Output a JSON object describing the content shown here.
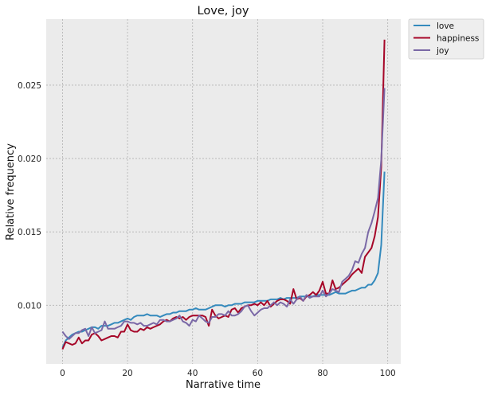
{
  "chart_data": {
    "type": "line",
    "title": "Love, joy",
    "xlabel": "Narrative time",
    "ylabel": "Relative frequency",
    "xlim": [
      -5,
      104
    ],
    "ylim": [
      0.006,
      0.0295
    ],
    "xticks": [
      0,
      20,
      40,
      60,
      80,
      100
    ],
    "yticks": [
      0.01,
      0.015,
      0.02,
      0.025
    ],
    "xtick_labels": [
      "0",
      "20",
      "40",
      "60",
      "80",
      "100"
    ],
    "ytick_labels": [
      "0.010",
      "0.015",
      "0.020",
      "0.025"
    ],
    "grid": true,
    "legend_position": "outside-top-right",
    "background": "#ebebeb",
    "x": [
      0,
      1,
      2,
      3,
      4,
      5,
      6,
      7,
      8,
      9,
      10,
      11,
      12,
      13,
      14,
      15,
      16,
      17,
      18,
      19,
      20,
      21,
      22,
      23,
      24,
      25,
      26,
      27,
      28,
      29,
      30,
      31,
      32,
      33,
      34,
      35,
      36,
      37,
      38,
      39,
      40,
      41,
      42,
      43,
      44,
      45,
      46,
      47,
      48,
      49,
      50,
      51,
      52,
      53,
      54,
      55,
      56,
      57,
      58,
      59,
      60,
      61,
      62,
      63,
      64,
      65,
      66,
      67,
      68,
      69,
      70,
      71,
      72,
      73,
      74,
      75,
      76,
      77,
      78,
      79,
      80,
      81,
      82,
      83,
      84,
      85,
      86,
      87,
      88,
      89,
      90,
      91,
      92,
      93,
      94,
      95,
      96,
      97,
      98,
      99
    ],
    "series": [
      {
        "name": "love",
        "color": "#348abd",
        "values": [
          0.0071,
          0.0076,
          0.0078,
          0.008,
          0.0081,
          0.0082,
          0.0082,
          0.0083,
          0.0084,
          0.0085,
          0.0085,
          0.0084,
          0.0086,
          0.0086,
          0.0086,
          0.0087,
          0.0088,
          0.0088,
          0.0089,
          0.009,
          0.0091,
          0.009,
          0.0092,
          0.0093,
          0.0093,
          0.0093,
          0.0094,
          0.0093,
          0.0093,
          0.0093,
          0.0092,
          0.0093,
          0.0094,
          0.0094,
          0.0095,
          0.0095,
          0.0096,
          0.0096,
          0.0096,
          0.0097,
          0.0097,
          0.0098,
          0.0097,
          0.0097,
          0.0097,
          0.0098,
          0.0099,
          0.01,
          0.01,
          0.01,
          0.0099,
          0.01,
          0.01,
          0.0101,
          0.0101,
          0.0101,
          0.0102,
          0.0102,
          0.0102,
          0.0102,
          0.0103,
          0.0103,
          0.0103,
          0.0103,
          0.0104,
          0.0104,
          0.0104,
          0.0105,
          0.0104,
          0.0105,
          0.0105,
          0.0105,
          0.0105,
          0.0106,
          0.0106,
          0.0106,
          0.0106,
          0.0106,
          0.0107,
          0.0107,
          0.0107,
          0.0107,
          0.0107,
          0.0108,
          0.0109,
          0.0108,
          0.0108,
          0.0108,
          0.0109,
          0.011,
          0.011,
          0.0111,
          0.0112,
          0.0112,
          0.0114,
          0.0114,
          0.0117,
          0.0122,
          0.0141,
          0.0191
        ]
      },
      {
        "name": "happiness",
        "color": "#a60628",
        "values": [
          0.007,
          0.0075,
          0.0074,
          0.0073,
          0.0074,
          0.0078,
          0.0074,
          0.0076,
          0.0076,
          0.008,
          0.0081,
          0.0079,
          0.0076,
          0.0077,
          0.0078,
          0.0079,
          0.0079,
          0.0078,
          0.0082,
          0.0082,
          0.0087,
          0.0083,
          0.0082,
          0.0082,
          0.0084,
          0.0083,
          0.0085,
          0.0084,
          0.0085,
          0.0086,
          0.0087,
          0.0089,
          0.009,
          0.0089,
          0.0091,
          0.0092,
          0.0091,
          0.0092,
          0.009,
          0.0092,
          0.0093,
          0.0093,
          0.0093,
          0.0093,
          0.0092,
          0.0086,
          0.0097,
          0.0093,
          0.0091,
          0.0092,
          0.0093,
          0.0092,
          0.0097,
          0.0098,
          0.0095,
          0.0098,
          0.0099,
          0.01,
          0.01,
          0.0101,
          0.01,
          0.0102,
          0.01,
          0.0103,
          0.0099,
          0.0101,
          0.0103,
          0.0104,
          0.0104,
          0.0103,
          0.0101,
          0.0111,
          0.0104,
          0.0105,
          0.0103,
          0.0106,
          0.0107,
          0.0109,
          0.0107,
          0.011,
          0.0116,
          0.0108,
          0.0108,
          0.0117,
          0.0111,
          0.0112,
          0.0114,
          0.0116,
          0.0118,
          0.0121,
          0.0123,
          0.0125,
          0.0122,
          0.0133,
          0.0136,
          0.0139,
          0.0147,
          0.016,
          0.0194,
          0.0281
        ]
      },
      {
        "name": "joy",
        "color": "#7a68a6",
        "values": [
          0.0082,
          0.0079,
          0.0077,
          0.0079,
          0.0081,
          0.0081,
          0.0083,
          0.0084,
          0.0079,
          0.0085,
          0.0081,
          0.0082,
          0.0083,
          0.0089,
          0.0084,
          0.0084,
          0.0084,
          0.0085,
          0.0086,
          0.0089,
          0.0089,
          0.0088,
          0.0088,
          0.0087,
          0.0088,
          0.0086,
          0.0086,
          0.0087,
          0.0088,
          0.0087,
          0.009,
          0.009,
          0.0089,
          0.0089,
          0.009,
          0.0091,
          0.0093,
          0.0089,
          0.0088,
          0.0086,
          0.009,
          0.0089,
          0.0093,
          0.0091,
          0.0089,
          0.0088,
          0.0092,
          0.0092,
          0.0094,
          0.0094,
          0.0093,
          0.0096,
          0.0093,
          0.0093,
          0.0094,
          0.0096,
          0.0099,
          0.01,
          0.0096,
          0.0093,
          0.0095,
          0.0097,
          0.0098,
          0.0098,
          0.01,
          0.0102,
          0.01,
          0.0102,
          0.0101,
          0.0099,
          0.0104,
          0.0101,
          0.0104,
          0.0106,
          0.0103,
          0.0107,
          0.0105,
          0.0106,
          0.0106,
          0.0106,
          0.011,
          0.0106,
          0.0108,
          0.0111,
          0.011,
          0.0109,
          0.0116,
          0.0118,
          0.012,
          0.0124,
          0.013,
          0.0129,
          0.0135,
          0.0139,
          0.015,
          0.0156,
          0.0164,
          0.0173,
          0.0199,
          0.0248
        ]
      }
    ]
  }
}
